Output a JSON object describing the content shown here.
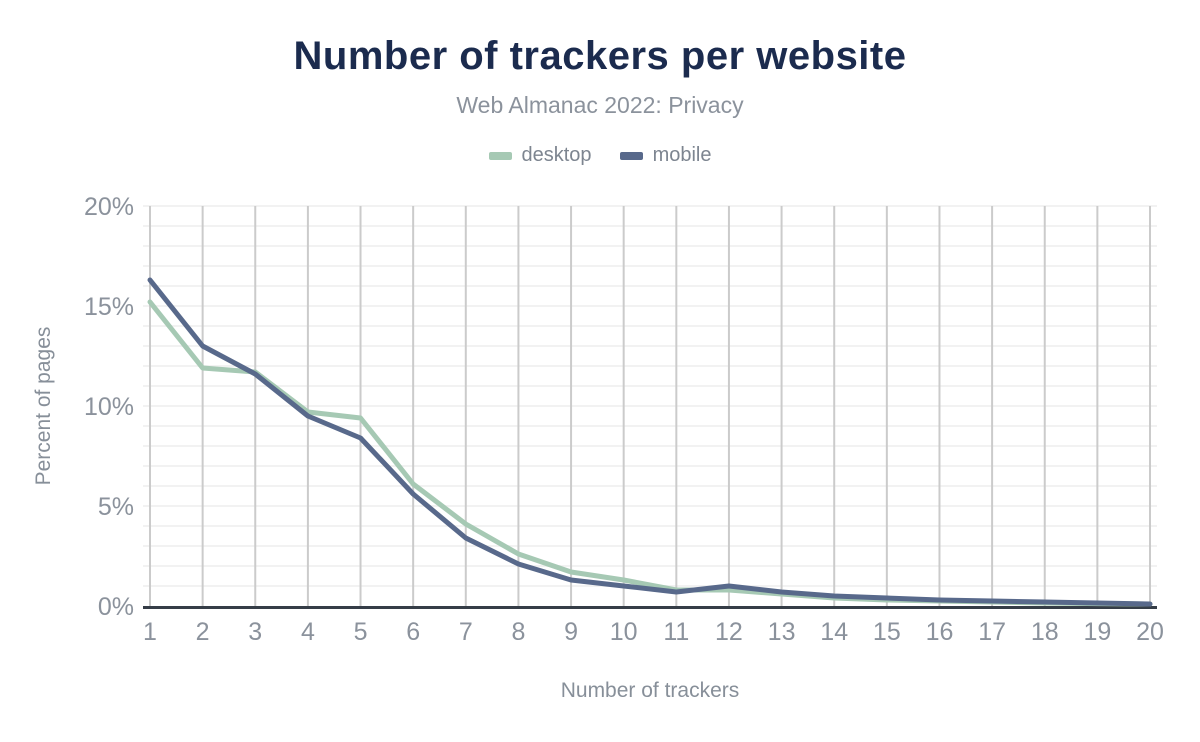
{
  "chart_data": {
    "type": "line",
    "title": "Number of trackers per website",
    "subtitle": "Web Almanac 2022: Privacy",
    "xlabel": "Number of trackers",
    "ylabel": "Percent of pages",
    "x": [
      1,
      2,
      3,
      4,
      5,
      6,
      7,
      8,
      9,
      10,
      11,
      12,
      13,
      14,
      15,
      16,
      17,
      18,
      19,
      20
    ],
    "series": [
      {
        "name": "desktop",
        "color": "#a6c9b4",
        "values": [
          15.2,
          11.9,
          11.7,
          9.7,
          9.4,
          6.1,
          4.1,
          2.6,
          1.7,
          1.3,
          0.8,
          0.8,
          0.6,
          0.4,
          0.3,
          0.25,
          0.2,
          0.15,
          0.12,
          0.1
        ]
      },
      {
        "name": "mobile",
        "color": "#58698b",
        "values": [
          16.3,
          13.0,
          11.6,
          9.5,
          8.4,
          5.6,
          3.4,
          2.1,
          1.3,
          1.0,
          0.7,
          1.0,
          0.7,
          0.5,
          0.4,
          0.3,
          0.25,
          0.2,
          0.15,
          0.1
        ]
      }
    ],
    "ylim": [
      0,
      20
    ],
    "ytick_step_percent": 5,
    "ytick_labels": [
      "0%",
      "5%",
      "10%",
      "15%",
      "20%"
    ],
    "minor_grid_step_percent": 1,
    "grid": "vertical and horizontal on",
    "legend_position": "top"
  },
  "colors": {
    "title": "#1b2b4e",
    "subtitle": "#8b929c",
    "tick_label": "#8b929c",
    "axis_title": "#878f99",
    "legend_label": "#7d8590",
    "grid_vertical": "#cbcbcb",
    "grid_horizontal": "#f2f2f2",
    "axis_line": "#353d47",
    "background": "#ffffff"
  }
}
